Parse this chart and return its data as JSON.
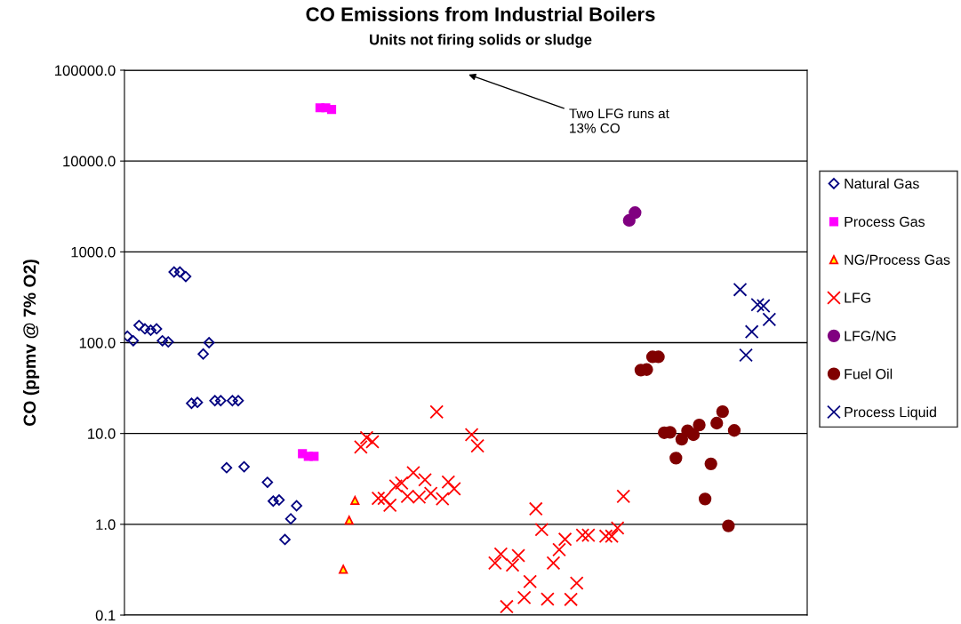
{
  "chart_data": {
    "type": "scatter",
    "title": "CO Emissions from Industrial Boilers",
    "subtitle": "Units not firing solids or sludge",
    "ylabel": "CO (ppmv @ 7% O2)",
    "annotations": [
      "Two LFG runs at\n13% CO"
    ],
    "log": "y",
    "ylim": [
      0.1,
      100000
    ],
    "yticks": [
      {
        "value": 0.1,
        "label": "0.1"
      },
      {
        "value": 1,
        "label": "1.0"
      },
      {
        "value": 10,
        "label": "10.0"
      },
      {
        "value": 100,
        "label": "100.0"
      },
      {
        "value": 1000,
        "label": "1000.0"
      },
      {
        "value": 10000,
        "label": "10000.0"
      },
      {
        "value": 100000,
        "label": "100000.0"
      }
    ],
    "tick_labels": "y",
    "grid": "y",
    "legend": "right",
    "categories": [
      null,
      null,
      null,
      null,
      null,
      null,
      null,
      null,
      null,
      null,
      null,
      null,
      null,
      null,
      null,
      null,
      null,
      null,
      null,
      null,
      null,
      null,
      null,
      null,
      null,
      null,
      null,
      null,
      null,
      null,
      null,
      null,
      null,
      null,
      null,
      null,
      null,
      null,
      null,
      null,
      null,
      null,
      null,
      null,
      null,
      null,
      null,
      null,
      null,
      null,
      null,
      null,
      null,
      null,
      null,
      null,
      null,
      null,
      null,
      null,
      null,
      null,
      null,
      null,
      null,
      null,
      null,
      null,
      null,
      null,
      null,
      null,
      null,
      null,
      null,
      null,
      null,
      null,
      null,
      null,
      null,
      null,
      null,
      null,
      null,
      null,
      null,
      null,
      null,
      null,
      null,
      null,
      null,
      null,
      null,
      null,
      null,
      null,
      null,
      null,
      null,
      null,
      null,
      null,
      null,
      null,
      null,
      null,
      null,
      null,
      null,
      null,
      null,
      null,
      null,
      null,
      null
    ],
    "series": [
      {
        "name": "Natural Gas",
        "color": "#000080",
        "marker": "diamond",
        "values": [
          118,
          105,
          155,
          142,
          137,
          142,
          105,
          102,
          600,
          600,
          535,
          21.5,
          22,
          75,
          100,
          23,
          23,
          4.2,
          23,
          23,
          4.3,
          null,
          null,
          null,
          2.9,
          1.8,
          1.85,
          0.68,
          1.15,
          1.6,
          null,
          null,
          null,
          null,
          null,
          null,
          null,
          null,
          null,
          null,
          null,
          null,
          null,
          null,
          null,
          null,
          null,
          null,
          null,
          null,
          null,
          null,
          null,
          null,
          null,
          null,
          null,
          null,
          null,
          null,
          null,
          null,
          null,
          null,
          null,
          null,
          null,
          null,
          null,
          null,
          null,
          null,
          null,
          null,
          null,
          null,
          null,
          null,
          null,
          null,
          null,
          null,
          null,
          null,
          null,
          null,
          null,
          null,
          null,
          null,
          null,
          null,
          null,
          null,
          null,
          null,
          null,
          null,
          null,
          null,
          null,
          null,
          null,
          null,
          null,
          null,
          null,
          null,
          null,
          null,
          null,
          null,
          null,
          null,
          null,
          null,
          null
        ]
      },
      {
        "name": "Process Gas",
        "color": "#ff00ff",
        "marker": "square",
        "values": [
          null,
          null,
          null,
          null,
          null,
          null,
          null,
          null,
          null,
          null,
          null,
          null,
          null,
          null,
          null,
          null,
          null,
          null,
          null,
          null,
          null,
          null,
          null,
          null,
          null,
          null,
          null,
          null,
          null,
          null,
          6.0,
          5.6,
          5.6,
          38600,
          38600,
          37000,
          null,
          null,
          null,
          null,
          null,
          null,
          null,
          null,
          null,
          null,
          null,
          null,
          null,
          null,
          null,
          null,
          null,
          null,
          null,
          null,
          null,
          null,
          null,
          null,
          null,
          null,
          null,
          null,
          null,
          null,
          null,
          null,
          null,
          null,
          null,
          null,
          null,
          null,
          null,
          null,
          null,
          null,
          null,
          null,
          null,
          null,
          null,
          null,
          null,
          null,
          null,
          null,
          null,
          null,
          null,
          null,
          null,
          null,
          null,
          null,
          null,
          null,
          null,
          null,
          null,
          null,
          null,
          null,
          null,
          null,
          null,
          null,
          null,
          null,
          null,
          null,
          null,
          null,
          null,
          null,
          null
        ]
      },
      {
        "name": "NG/Process Gas",
        "color": "#ff0000",
        "marker": "triangle",
        "values": [
          null,
          null,
          null,
          null,
          null,
          null,
          null,
          null,
          null,
          null,
          null,
          null,
          null,
          null,
          null,
          null,
          null,
          null,
          null,
          null,
          null,
          null,
          null,
          null,
          null,
          null,
          null,
          null,
          null,
          null,
          null,
          null,
          null,
          null,
          null,
          null,
          null,
          0.32,
          1.11,
          1.83,
          null,
          null,
          null,
          null,
          null,
          null,
          null,
          null,
          null,
          null,
          null,
          null,
          null,
          null,
          null,
          null,
          null,
          null,
          null,
          null,
          null,
          null,
          null,
          null,
          null,
          null,
          null,
          null,
          null,
          null,
          null,
          null,
          null,
          null,
          null,
          null,
          null,
          null,
          null,
          null,
          null,
          null,
          null,
          null,
          null,
          null,
          null,
          null,
          null,
          null,
          null,
          null,
          null,
          null,
          null,
          null,
          null,
          null,
          null,
          null,
          null,
          null,
          null,
          null,
          null,
          null,
          null,
          null,
          null,
          null,
          null,
          null,
          null,
          null,
          null,
          null,
          null
        ]
      },
      {
        "name": "LFG",
        "color": "#ff0000",
        "marker": "cross",
        "values": [
          null,
          null,
          null,
          null,
          null,
          null,
          null,
          null,
          null,
          null,
          null,
          null,
          null,
          null,
          null,
          null,
          null,
          null,
          null,
          null,
          null,
          null,
          null,
          null,
          null,
          null,
          null,
          null,
          null,
          null,
          null,
          null,
          null,
          null,
          null,
          null,
          null,
          null,
          null,
          null,
          7.1,
          9.0,
          8.1,
          1.93,
          1.93,
          1.62,
          2.64,
          2.85,
          2.03,
          3.7,
          2.0,
          3.09,
          2.19,
          17.3,
          1.91,
          2.92,
          2.46,
          null,
          null,
          9.7,
          7.3,
          null,
          null,
          0.375,
          0.47,
          0.124,
          0.356,
          0.453,
          0.156,
          0.234,
          1.48,
          0.875,
          0.15,
          0.375,
          0.526,
          0.684,
          0.149,
          0.225,
          0.758,
          0.758,
          null,
          null,
          0.74,
          0.74,
          0.91,
          2.03,
          null,
          null,
          null,
          null,
          null,
          null,
          null,
          null,
          null,
          null,
          null,
          null,
          null,
          null,
          null,
          null,
          null,
          null,
          null,
          null,
          null,
          null,
          null,
          null,
          null,
          null,
          null,
          null,
          null,
          null,
          null
        ]
      },
      {
        "name": "LFG/NG",
        "color": "#800080",
        "marker": "circle",
        "values": [
          null,
          null,
          null,
          null,
          null,
          null,
          null,
          null,
          null,
          null,
          null,
          null,
          null,
          null,
          null,
          null,
          null,
          null,
          null,
          null,
          null,
          null,
          null,
          null,
          null,
          null,
          null,
          null,
          null,
          null,
          null,
          null,
          null,
          null,
          null,
          null,
          null,
          null,
          null,
          null,
          null,
          null,
          null,
          null,
          null,
          null,
          null,
          null,
          null,
          null,
          null,
          null,
          null,
          null,
          null,
          null,
          null,
          null,
          null,
          null,
          null,
          null,
          null,
          null,
          null,
          null,
          null,
          null,
          null,
          null,
          null,
          null,
          null,
          null,
          null,
          null,
          null,
          null,
          null,
          null,
          null,
          null,
          null,
          null,
          null,
          null,
          2220,
          2700,
          null,
          null,
          null,
          null,
          null,
          null,
          null,
          null,
          null,
          null,
          null,
          null,
          null,
          null,
          null,
          null,
          null,
          null,
          null,
          null,
          null,
          null,
          null,
          null,
          null,
          null,
          null,
          null,
          null
        ]
      },
      {
        "name": "Fuel Oil",
        "color": "#800000",
        "marker": "circle",
        "values": [
          null,
          null,
          null,
          null,
          null,
          null,
          null,
          null,
          null,
          null,
          null,
          null,
          null,
          null,
          null,
          null,
          null,
          null,
          null,
          null,
          null,
          null,
          null,
          null,
          null,
          null,
          null,
          null,
          null,
          null,
          null,
          null,
          null,
          null,
          null,
          null,
          null,
          null,
          null,
          null,
          null,
          null,
          null,
          null,
          null,
          null,
          null,
          null,
          null,
          null,
          null,
          null,
          null,
          null,
          null,
          null,
          null,
          null,
          null,
          null,
          null,
          null,
          null,
          null,
          null,
          null,
          null,
          null,
          null,
          null,
          null,
          null,
          null,
          null,
          null,
          null,
          null,
          null,
          null,
          null,
          null,
          null,
          null,
          null,
          null,
          null,
          null,
          null,
          49.9,
          50.6,
          69.8,
          69.8,
          10.2,
          10.3,
          5.36,
          8.65,
          10.7,
          9.7,
          12.4,
          1.9,
          4.63,
          13.0,
          17.4,
          0.96,
          10.8,
          null,
          null,
          null,
          null,
          null,
          null,
          null,
          null,
          null,
          null,
          null,
          null
        ]
      },
      {
        "name": "Process Liquid",
        "color": "#000080",
        "marker": "cross",
        "values": [
          null,
          null,
          null,
          null,
          null,
          null,
          null,
          null,
          null,
          null,
          null,
          null,
          null,
          null,
          null,
          null,
          null,
          null,
          null,
          null,
          null,
          null,
          null,
          null,
          null,
          null,
          null,
          null,
          null,
          null,
          null,
          null,
          null,
          null,
          null,
          null,
          null,
          null,
          null,
          null,
          null,
          null,
          null,
          null,
          null,
          null,
          null,
          null,
          null,
          null,
          null,
          null,
          null,
          null,
          null,
          null,
          null,
          null,
          null,
          null,
          null,
          null,
          null,
          null,
          null,
          null,
          null,
          null,
          null,
          null,
          null,
          null,
          null,
          null,
          null,
          null,
          null,
          null,
          null,
          null,
          null,
          null,
          null,
          null,
          null,
          null,
          null,
          null,
          null,
          null,
          null,
          null,
          null,
          null,
          null,
          null,
          null,
          null,
          null,
          null,
          null,
          null,
          null,
          null,
          null,
          384,
          73,
          132,
          262,
          254,
          180,
          null,
          null,
          null,
          null,
          null,
          null
        ]
      }
    ]
  }
}
